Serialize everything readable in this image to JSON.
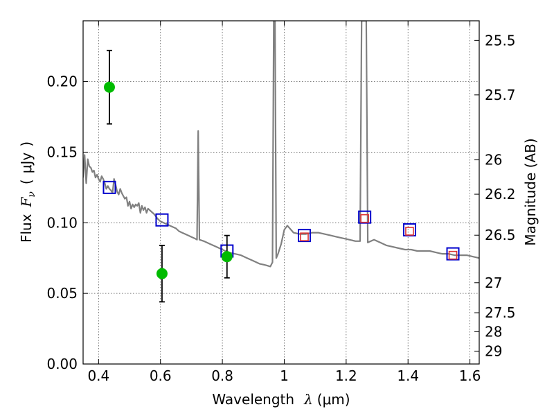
{
  "chart_data": {
    "type": "scatter",
    "title": "",
    "xlabel": {
      "prefix": "Wavelength",
      "symbol": "λ",
      "unit": "(μm)"
    },
    "ylabel": {
      "prefix": "Flux",
      "symbol": "F",
      "subscript": "ν",
      "unit_open": "(",
      "unit": "μJy",
      "unit_close": ")"
    },
    "y2label": "Magnitude (AB)",
    "xlim": [
      0.35,
      1.63
    ],
    "ylim": [
      0.0,
      0.243
    ],
    "x_ticks": [
      0.4,
      0.6,
      0.8,
      1.0,
      1.2,
      1.4,
      1.6
    ],
    "x_tick_labels": [
      "0.4",
      "0.6",
      "0.8",
      "1",
      "1.2",
      "1.4",
      "1.6"
    ],
    "y_ticks": [
      0.0,
      0.05,
      0.1,
      0.15,
      0.2
    ],
    "y_tick_labels": [
      "0.00",
      "0.05",
      "0.10",
      "0.15",
      "0.20"
    ],
    "y2_ticks": [
      25.5,
      25.7,
      26,
      26.2,
      26.5,
      27,
      27.5,
      28,
      29
    ],
    "y2_tick_labels": [
      "25.5",
      "25.7",
      "26",
      "26.2",
      "26.5",
      "27",
      "27.5",
      "28",
      "29"
    ],
    "grid": true,
    "colors": {
      "model": "#808080",
      "observed": "#00bb00",
      "errorbar": "#000000",
      "model_band": "#0000cc",
      "observed_band": "#dd3333"
    },
    "series": [
      {
        "kind": "line",
        "points": [
          [
            0.35,
            0.132
          ],
          [
            0.355,
            0.148
          ],
          [
            0.36,
            0.128
          ],
          [
            0.365,
            0.145
          ],
          [
            0.37,
            0.14
          ],
          [
            0.375,
            0.139
          ],
          [
            0.38,
            0.136
          ],
          [
            0.385,
            0.137
          ],
          [
            0.39,
            0.132
          ],
          [
            0.395,
            0.134
          ],
          [
            0.4,
            0.131
          ],
          [
            0.405,
            0.129
          ],
          [
            0.41,
            0.133
          ],
          [
            0.415,
            0.131
          ],
          [
            0.42,
            0.128
          ],
          [
            0.425,
            0.124
          ],
          [
            0.43,
            0.126
          ],
          [
            0.435,
            0.124
          ],
          [
            0.44,
            0.123
          ],
          [
            0.445,
            0.121
          ],
          [
            0.45,
            0.131
          ],
          [
            0.455,
            0.127
          ],
          [
            0.46,
            0.122
          ],
          [
            0.465,
            0.12
          ],
          [
            0.47,
            0.124
          ],
          [
            0.475,
            0.121
          ],
          [
            0.48,
            0.119
          ],
          [
            0.485,
            0.117
          ],
          [
            0.49,
            0.118
          ],
          [
            0.495,
            0.112
          ],
          [
            0.5,
            0.115
          ],
          [
            0.505,
            0.11
          ],
          [
            0.51,
            0.113
          ],
          [
            0.515,
            0.111
          ],
          [
            0.52,
            0.113
          ],
          [
            0.525,
            0.112
          ],
          [
            0.53,
            0.114
          ],
          [
            0.535,
            0.107
          ],
          [
            0.54,
            0.112
          ],
          [
            0.545,
            0.109
          ],
          [
            0.55,
            0.111
          ],
          [
            0.555,
            0.107
          ],
          [
            0.56,
            0.11
          ],
          [
            0.57,
            0.108
          ],
          [
            0.58,
            0.106
          ],
          [
            0.59,
            0.103
          ],
          [
            0.6,
            0.101
          ],
          [
            0.61,
            0.1
          ],
          [
            0.62,
            0.099
          ],
          [
            0.63,
            0.098
          ],
          [
            0.64,
            0.097
          ],
          [
            0.65,
            0.096
          ],
          [
            0.66,
            0.094
          ],
          [
            0.67,
            0.093
          ],
          [
            0.68,
            0.092
          ],
          [
            0.69,
            0.091
          ],
          [
            0.7,
            0.09
          ],
          [
            0.71,
            0.089
          ],
          [
            0.718,
            0.088
          ],
          [
            0.722,
            0.165
          ],
          [
            0.726,
            0.088
          ],
          [
            0.74,
            0.087
          ],
          [
            0.76,
            0.085
          ],
          [
            0.78,
            0.083
          ],
          [
            0.8,
            0.081
          ],
          [
            0.82,
            0.079
          ],
          [
            0.84,
            0.078
          ],
          [
            0.86,
            0.077
          ],
          [
            0.88,
            0.075
          ],
          [
            0.9,
            0.073
          ],
          [
            0.92,
            0.071
          ],
          [
            0.94,
            0.07
          ],
          [
            0.955,
            0.069
          ],
          [
            0.962,
            0.072
          ],
          [
            0.966,
            0.243
          ],
          [
            0.97,
            0.243
          ],
          [
            0.974,
            0.075
          ],
          [
            0.98,
            0.078
          ],
          [
            0.99,
            0.085
          ],
          [
            1.0,
            0.095
          ],
          [
            1.01,
            0.098
          ],
          [
            1.03,
            0.093
          ],
          [
            1.05,
            0.092
          ],
          [
            1.07,
            0.092
          ],
          [
            1.09,
            0.093
          ],
          [
            1.11,
            0.093
          ],
          [
            1.13,
            0.092
          ],
          [
            1.15,
            0.091
          ],
          [
            1.17,
            0.09
          ],
          [
            1.19,
            0.089
          ],
          [
            1.21,
            0.088
          ],
          [
            1.23,
            0.087
          ],
          [
            1.245,
            0.087
          ],
          [
            1.25,
            0.243
          ],
          [
            1.265,
            0.243
          ],
          [
            1.27,
            0.086
          ],
          [
            1.29,
            0.088
          ],
          [
            1.31,
            0.086
          ],
          [
            1.33,
            0.084
          ],
          [
            1.35,
            0.083
          ],
          [
            1.37,
            0.082
          ],
          [
            1.39,
            0.081
          ],
          [
            1.41,
            0.081
          ],
          [
            1.43,
            0.08
          ],
          [
            1.45,
            0.08
          ],
          [
            1.47,
            0.08
          ],
          [
            1.49,
            0.079
          ],
          [
            1.51,
            0.078
          ],
          [
            1.53,
            0.078
          ],
          [
            1.55,
            0.077
          ],
          [
            1.57,
            0.077
          ],
          [
            1.59,
            0.077
          ],
          [
            1.61,
            0.076
          ],
          [
            1.63,
            0.075
          ]
        ]
      },
      {
        "kind": "points",
        "marker": "circle",
        "x": [
          0.435,
          0.605,
          0.815
        ],
        "y": [
          0.196,
          0.064,
          0.076
        ],
        "yerr": [
          0.026,
          0.02,
          0.015
        ]
      },
      {
        "kind": "points",
        "marker": "square",
        "x": [
          0.435,
          0.605,
          0.815,
          1.065,
          1.26,
          1.405,
          1.545
        ],
        "y": [
          0.125,
          0.102,
          0.08,
          0.091,
          0.104,
          0.095,
          0.078
        ]
      },
      {
        "kind": "points",
        "marker": "square-small",
        "x": [
          1.065,
          1.26,
          1.405,
          1.545
        ],
        "y": [
          0.09,
          0.103,
          0.094,
          0.077
        ]
      }
    ]
  }
}
